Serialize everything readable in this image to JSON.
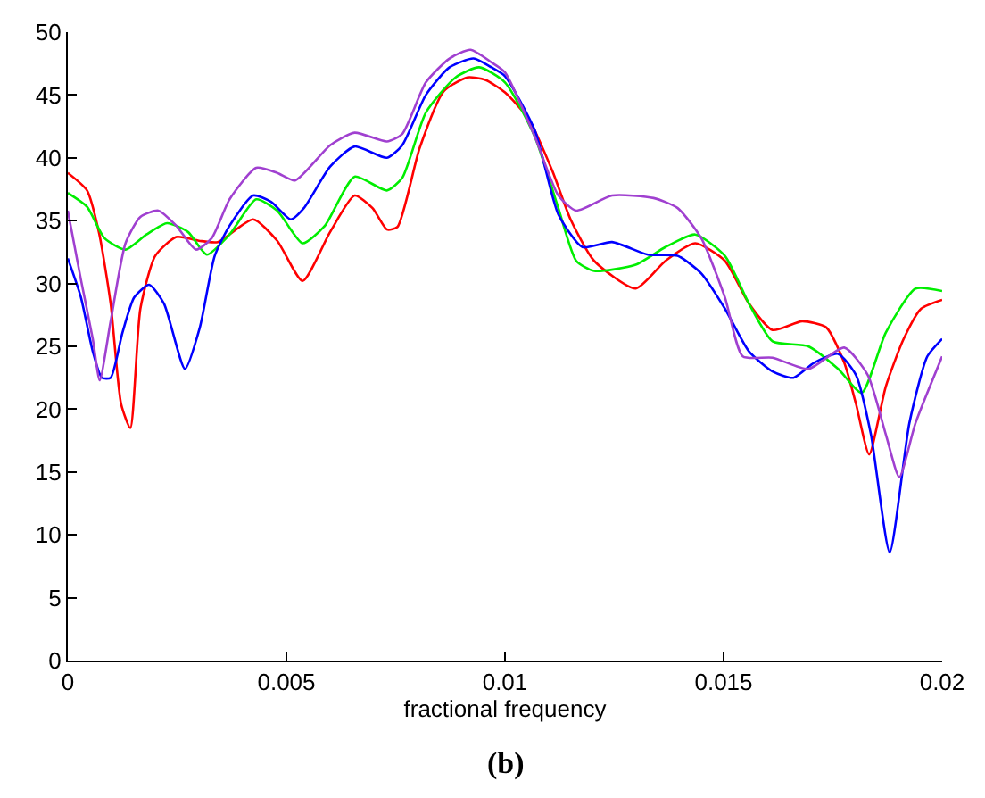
{
  "chart_data": {
    "type": "line",
    "xlabel": "fractional frequency",
    "annotations": [
      "(b)"
    ],
    "xlim": [
      0,
      0.02
    ],
    "xticks": [
      0,
      0.005,
      0.01,
      0.015,
      0.02
    ],
    "ylim": [
      0,
      50
    ],
    "yticks": [
      0,
      5,
      10,
      15,
      20,
      25,
      30,
      35,
      40,
      45,
      50
    ],
    "marker": "none",
    "line_style": "solid",
    "series": [
      {
        "color": "#ff0000",
        "x": [
          0,
          0.00044,
          0.00071,
          0.00098,
          0.00122,
          0.00143,
          0.00166,
          0.002,
          0.00248,
          0.003,
          0.00343,
          0.00424,
          0.00479,
          0.00537,
          0.006,
          0.00656,
          0.00697,
          0.0073,
          0.00754,
          0.00805,
          0.0086,
          0.00914,
          0.00955,
          0.01,
          0.01054,
          0.01109,
          0.0115,
          0.01204,
          0.01299,
          0.01367,
          0.01435,
          0.01503,
          0.01558,
          0.01612,
          0.0168,
          0.01735,
          0.01776,
          0.01803,
          0.01833,
          0.01871,
          0.01912,
          0.01952,
          0.02
        ],
        "values": [
          38.8,
          37.4,
          34.1,
          28.4,
          20.4,
          18.5,
          28,
          32.2,
          33.7,
          33.4,
          33.3,
          35.1,
          33.4,
          30.2,
          34.1,
          37,
          36,
          34.3,
          34.5,
          40.8,
          45.3,
          46.4,
          46.2,
          45.2,
          43.1,
          38.9,
          35.1,
          31.8,
          29.6,
          31.8,
          33.2,
          31.8,
          28.4,
          26.3,
          27,
          26.5,
          23.7,
          20.4,
          16.4,
          21.8,
          25.6,
          28,
          28.7
        ]
      },
      {
        "color": "#00ee00",
        "x": [
          0,
          0.00044,
          0.00084,
          0.00132,
          0.0018,
          0.00227,
          0.00275,
          0.00318,
          0.0037,
          0.00431,
          0.00479,
          0.00537,
          0.00588,
          0.00656,
          0.0073,
          0.00765,
          0.00819,
          0.00887,
          0.00941,
          0.01,
          0.01068,
          0.01122,
          0.01163,
          0.01204,
          0.01299,
          0.01367,
          0.01435,
          0.01503,
          0.01558,
          0.01612,
          0.01694,
          0.01762,
          0.01816,
          0.01871,
          0.01939,
          0.02
        ],
        "values": [
          37.2,
          36.1,
          33.6,
          32.7,
          33.9,
          34.8,
          34.1,
          32.3,
          33.9,
          36.7,
          35.8,
          33.2,
          34.6,
          38.5,
          37.4,
          38.4,
          43.6,
          46.4,
          47.2,
          46,
          41.7,
          36,
          31.8,
          31,
          31.5,
          32.9,
          33.9,
          32.2,
          28.4,
          25.4,
          25,
          23.2,
          21.3,
          26.1,
          29.6,
          29.4
        ]
      },
      {
        "color": "#0000ff",
        "x": [
          0,
          0.0003,
          0.00057,
          0.00078,
          0.00098,
          0.00125,
          0.00152,
          0.00186,
          0.0022,
          0.00268,
          0.00302,
          0.00336,
          0.0037,
          0.00424,
          0.00465,
          0.0051,
          0.0054,
          0.006,
          0.00656,
          0.0073,
          0.00765,
          0.00819,
          0.00873,
          0.00928,
          0.00969,
          0.01,
          0.01068,
          0.01122,
          0.01177,
          0.01245,
          0.01327,
          0.01395,
          0.01449,
          0.01503,
          0.01558,
          0.01612,
          0.0166,
          0.01707,
          0.01762,
          0.01803,
          0.01837,
          0.0188,
          0.01925,
          0.01966,
          0.02
        ],
        "values": [
          32,
          28.9,
          24.6,
          22.5,
          22.5,
          26.1,
          28.9,
          29.9,
          28.4,
          23.2,
          26.5,
          32.2,
          34.6,
          37,
          36.5,
          35.1,
          36,
          39.3,
          40.9,
          40,
          41,
          45,
          47.2,
          47.9,
          47.2,
          46.5,
          42.2,
          35.5,
          32.9,
          33.3,
          32.3,
          32.2,
          30.8,
          28,
          24.6,
          23,
          22.5,
          23.7,
          24.4,
          22.7,
          18,
          8.6,
          18.9,
          24.2,
          25.6
        ]
      },
      {
        "color": "#a040d0",
        "x": [
          0,
          0.0003,
          0.00057,
          0.00073,
          0.00098,
          0.00132,
          0.00166,
          0.00207,
          0.00248,
          0.00293,
          0.00329,
          0.0037,
          0.00431,
          0.00479,
          0.0052,
          0.006,
          0.00656,
          0.0073,
          0.00765,
          0.00819,
          0.00873,
          0.00921,
          0.00969,
          0.01,
          0.01068,
          0.01122,
          0.01163,
          0.01245,
          0.0134,
          0.01395,
          0.01449,
          0.01503,
          0.01544,
          0.01612,
          0.01694,
          0.01776,
          0.0183,
          0.01871,
          0.01902,
          0.01939,
          0.02
        ],
        "values": [
          35.8,
          30.3,
          25.6,
          22.3,
          27,
          33.2,
          35.3,
          35.8,
          34.6,
          32.7,
          33.6,
          36.7,
          39.2,
          38.8,
          38.2,
          41,
          42,
          41.3,
          41.9,
          46,
          47.9,
          48.6,
          47.6,
          46.8,
          41.7,
          37,
          35.8,
          37,
          36.8,
          36,
          33.6,
          28.9,
          24.2,
          24.1,
          23.2,
          24.9,
          22.7,
          18,
          14.6,
          18.9,
          24.2
        ]
      }
    ]
  }
}
